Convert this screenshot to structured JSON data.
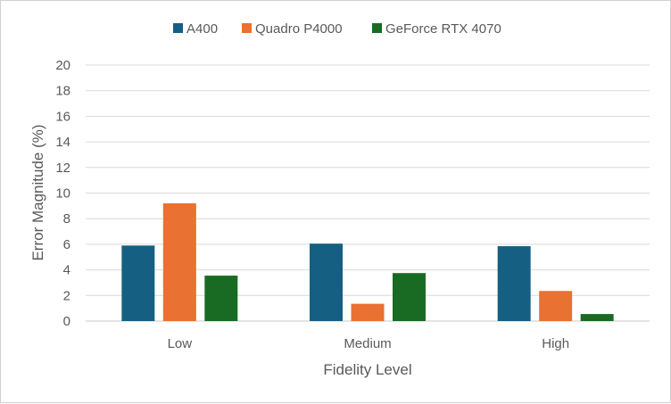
{
  "chart_data": {
    "type": "bar",
    "title": "",
    "xlabel": "Fidelity Level",
    "ylabel": "Error Magnitude (%)",
    "categories": [
      "Low",
      "Medium",
      "High"
    ],
    "series": [
      {
        "name": "A400",
        "color": "#156082",
        "values": [
          5.9,
          6.05,
          5.85
        ]
      },
      {
        "name": "Quadro P4000",
        "color": "#E97132",
        "values": [
          9.2,
          1.35,
          2.35
        ]
      },
      {
        "name": "GeForce RTX 4070",
        "color": "#196B24",
        "values": [
          3.55,
          3.75,
          0.55
        ]
      }
    ],
    "ylim": [
      0,
      20
    ],
    "yticks": [
      "0",
      "2",
      "4",
      "6",
      "8",
      "10",
      "12",
      "14",
      "16",
      "18",
      "20"
    ],
    "grid": true,
    "legend": "top-center"
  }
}
